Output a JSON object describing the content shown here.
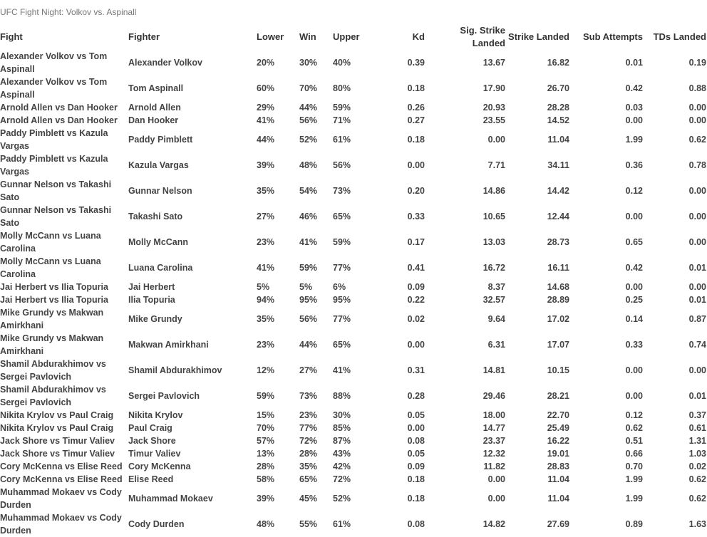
{
  "header": {
    "title": "UFC Fight Night: Volkov vs. Aspinall"
  },
  "table": {
    "columns": [
      "Fight",
      "Fighter",
      "Lower",
      "Win",
      "Upper",
      "Kd",
      "Sig. Strike Landed",
      "Strike Landed",
      "Sub Attempts",
      "TDs Landed"
    ],
    "rows": [
      [
        "Alexander Volkov vs Tom Aspinall",
        "Alexander Volkov",
        "20%",
        "30%",
        "40%",
        "0.39",
        "13.67",
        "16.82",
        "0.01",
        "0.19"
      ],
      [
        "Alexander Volkov vs Tom Aspinall",
        "Tom Aspinall",
        "60%",
        "70%",
        "80%",
        "0.18",
        "17.90",
        "26.70",
        "0.42",
        "0.88"
      ],
      [
        "Arnold Allen vs Dan Hooker",
        "Arnold Allen",
        "29%",
        "44%",
        "59%",
        "0.26",
        "20.93",
        "28.28",
        "0.03",
        "0.00"
      ],
      [
        "Arnold Allen vs Dan Hooker",
        "Dan Hooker",
        "41%",
        "56%",
        "71%",
        "0.27",
        "23.55",
        "14.52",
        "0.00",
        "0.00"
      ],
      [
        "Paddy Pimblett vs Kazula Vargas",
        "Paddy Pimblett",
        "44%",
        "52%",
        "61%",
        "0.18",
        "0.00",
        "11.04",
        "1.99",
        "0.62"
      ],
      [
        "Paddy Pimblett vs Kazula Vargas",
        "Kazula Vargas",
        "39%",
        "48%",
        "56%",
        "0.00",
        "7.71",
        "34.11",
        "0.36",
        "0.78"
      ],
      [
        "Gunnar Nelson vs Takashi Sato",
        "Gunnar Nelson",
        "35%",
        "54%",
        "73%",
        "0.20",
        "14.86",
        "14.42",
        "0.12",
        "0.00"
      ],
      [
        "Gunnar Nelson vs Takashi Sato",
        "Takashi Sato",
        "27%",
        "46%",
        "65%",
        "0.33",
        "10.65",
        "12.44",
        "0.00",
        "0.00"
      ],
      [
        "Molly McCann vs Luana Carolina",
        "Molly McCann",
        "23%",
        "41%",
        "59%",
        "0.17",
        "13.03",
        "28.73",
        "0.65",
        "0.00"
      ],
      [
        "Molly McCann vs Luana Carolina",
        "Luana Carolina",
        "41%",
        "59%",
        "77%",
        "0.41",
        "16.72",
        "16.11",
        "0.42",
        "0.01"
      ],
      [
        "Jai Herbert vs Ilia Topuria",
        "Jai Herbert",
        "5%",
        "5%",
        "6%",
        "0.09",
        "8.37",
        "14.68",
        "0.00",
        "0.00"
      ],
      [
        "Jai Herbert vs Ilia Topuria",
        "Ilia Topuria",
        "94%",
        "95%",
        "95%",
        "0.22",
        "32.57",
        "28.89",
        "0.25",
        "0.01"
      ],
      [
        "Mike Grundy vs Makwan Amirkhani",
        "Mike Grundy",
        "35%",
        "56%",
        "77%",
        "0.02",
        "9.64",
        "17.02",
        "0.14",
        "0.87"
      ],
      [
        "Mike Grundy vs Makwan Amirkhani",
        "Makwan Amirkhani",
        "23%",
        "44%",
        "65%",
        "0.00",
        "6.31",
        "17.07",
        "0.33",
        "0.74"
      ],
      [
        "Shamil Abdurakhimov vs Sergei Pavlovich",
        "Shamil Abdurakhimov",
        "12%",
        "27%",
        "41%",
        "0.31",
        "14.81",
        "10.15",
        "0.00",
        "0.00"
      ],
      [
        "Shamil Abdurakhimov vs Sergei Pavlovich",
        "Sergei Pavlovich",
        "59%",
        "73%",
        "88%",
        "0.28",
        "29.46",
        "28.21",
        "0.00",
        "0.01"
      ],
      [
        "Nikita Krylov vs Paul Craig",
        "Nikita Krylov",
        "15%",
        "23%",
        "30%",
        "0.05",
        "18.00",
        "22.70",
        "0.12",
        "0.37"
      ],
      [
        "Nikita Krylov vs Paul Craig",
        "Paul Craig",
        "70%",
        "77%",
        "85%",
        "0.00",
        "14.77",
        "25.49",
        "0.62",
        "0.61"
      ],
      [
        "Jack Shore vs Timur Valiev",
        "Jack Shore",
        "57%",
        "72%",
        "87%",
        "0.08",
        "23.37",
        "16.22",
        "0.51",
        "1.31"
      ],
      [
        "Jack Shore vs Timur Valiev",
        "Timur Valiev",
        "13%",
        "28%",
        "43%",
        "0.05",
        "12.32",
        "19.01",
        "0.66",
        "1.03"
      ],
      [
        "Cory McKenna vs Elise Reed",
        "Cory McKenna",
        "28%",
        "35%",
        "42%",
        "0.09",
        "11.82",
        "28.83",
        "0.70",
        "0.02"
      ],
      [
        "Cory McKenna vs Elise Reed",
        "Elise Reed",
        "58%",
        "65%",
        "72%",
        "0.18",
        "0.00",
        "11.04",
        "1.99",
        "0.62"
      ],
      [
        "Muhammad Mokaev vs Cody Durden",
        "Muhammad Mokaev",
        "39%",
        "45%",
        "52%",
        "0.18",
        "0.00",
        "11.04",
        "1.99",
        "0.62"
      ],
      [
        "Muhammad Mokaev vs Cody Durden",
        "Cody Durden",
        "48%",
        "55%",
        "61%",
        "0.08",
        "14.82",
        "27.69",
        "0.89",
        "1.63"
      ]
    ]
  }
}
